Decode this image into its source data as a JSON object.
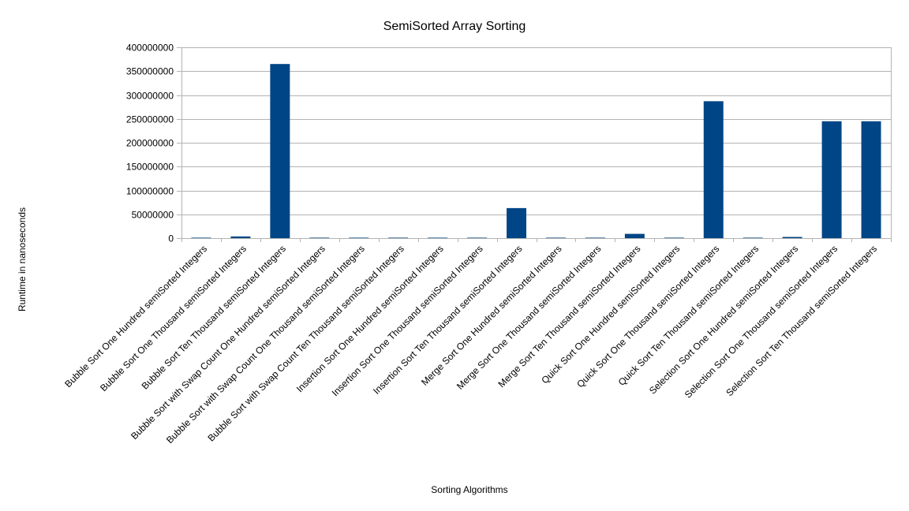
{
  "chart_data": {
    "type": "bar",
    "title": "SemiSorted Array Sorting",
    "xlabel": "Sorting Algorithms",
    "ylabel": "Runtime in nanoseconds",
    "ylim": [
      0,
      400000000
    ],
    "yticks": [
      0,
      50000000,
      100000000,
      150000000,
      200000000,
      250000000,
      300000000,
      350000000,
      400000000
    ],
    "grid": true,
    "legend": "none",
    "bar_color": "#004586",
    "categories": [
      "Bubble Sort One Hundred semiSorted Integers",
      "Bubble Sort One Thousand semiSorted Integers",
      "Bubble Sort Ten Thousand semiSorted Integers",
      "Bubble Sort with Swap Count One Hundred semiSorted Integers",
      "Bubble Sort with Swap Count One Thousand semiSorted Integers",
      "Bubble Sort with Swap Count Ten Thousand semiSorted Integers",
      "Insertion Sort One Hundred semiSorted Integers",
      "Insertion Sort One Thousand semiSorted Integers",
      "Insertion Sort Ten Thousand semiSorted Integers",
      "Merge Sort One Hundred semiSorted Integers",
      "Merge Sort One Thousand semiSorted Integers",
      "Merge Sort Ten Thousand semiSorted Integers",
      "Quick Sort One Hundred semiSorted Integers",
      "Quick Sort One Thousand semiSorted Integers",
      "Quick Sort Ten Thousand semiSorted Integers",
      "Selection Sort One Hundred semiSorted Integers",
      "Selection Sort One Thousand semiSorted Integers",
      "Selection Sort Ten Thousand semiSorted Integers"
    ],
    "values": [
      30000,
      3600000,
      365000000,
      20000,
      40000,
      500000,
      10000,
      600000,
      63000000,
      20000,
      900000,
      9000000,
      20000,
      287000000,
      30000,
      2500000,
      245000000,
      245000000
    ]
  }
}
